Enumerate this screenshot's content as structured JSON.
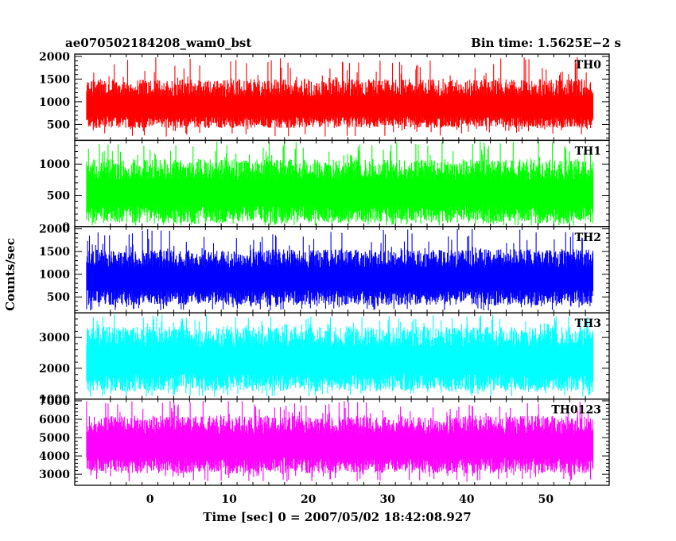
{
  "header": {
    "left_title": "ae070502184208_wam0_bst",
    "right_title": "Bin time: 1.5625E−2 s"
  },
  "axes": {
    "xlabel": "Time [sec] 0 = 2007/05/02 18:42:08.927",
    "ylabel": "Counts/sec"
  },
  "chart_data": {
    "type": "line",
    "x_range": [
      -8,
      56
    ],
    "xlim": [
      -9.5,
      58
    ],
    "x_ticks": [
      0,
      10,
      20,
      30,
      40,
      50
    ],
    "bin_time_s": 0.015625,
    "panels": [
      {
        "name": "TH0",
        "color": "#ff0000",
        "ylim": [
          150,
          2050
        ],
        "y_ticks": [
          500,
          1000,
          1500,
          2000
        ],
        "mean": 900,
        "low": 420,
        "high": 1500,
        "spike_max": 2000
      },
      {
        "name": "TH1",
        "color": "#00ff00",
        "ylim": [
          0,
          1380
        ],
        "y_ticks": [
          0,
          500,
          1000
        ],
        "mean": 560,
        "low": 60,
        "high": 1080,
        "spike_max": 1360
      },
      {
        "name": "TH2",
        "color": "#0000ff",
        "ylim": [
          150,
          2050
        ],
        "y_ticks": [
          500,
          1000,
          1500,
          2000
        ],
        "mean": 930,
        "low": 320,
        "high": 1550,
        "spike_max": 2000
      },
      {
        "name": "TH3",
        "color": "#00ffff",
        "ylim": [
          1000,
          3800
        ],
        "y_ticks": [
          1000,
          2000,
          3000
        ],
        "mean": 2300,
        "low": 1250,
        "high": 3350,
        "spike_max": 3750
      },
      {
        "name": "TH0123",
        "color": "#ff00ff",
        "ylim": [
          2400,
          7100
        ],
        "y_ticks": [
          3000,
          4000,
          5000,
          6000,
          7000
        ],
        "mean": 4650,
        "low": 3050,
        "high": 6200,
        "spike_max": 7000
      }
    ]
  }
}
